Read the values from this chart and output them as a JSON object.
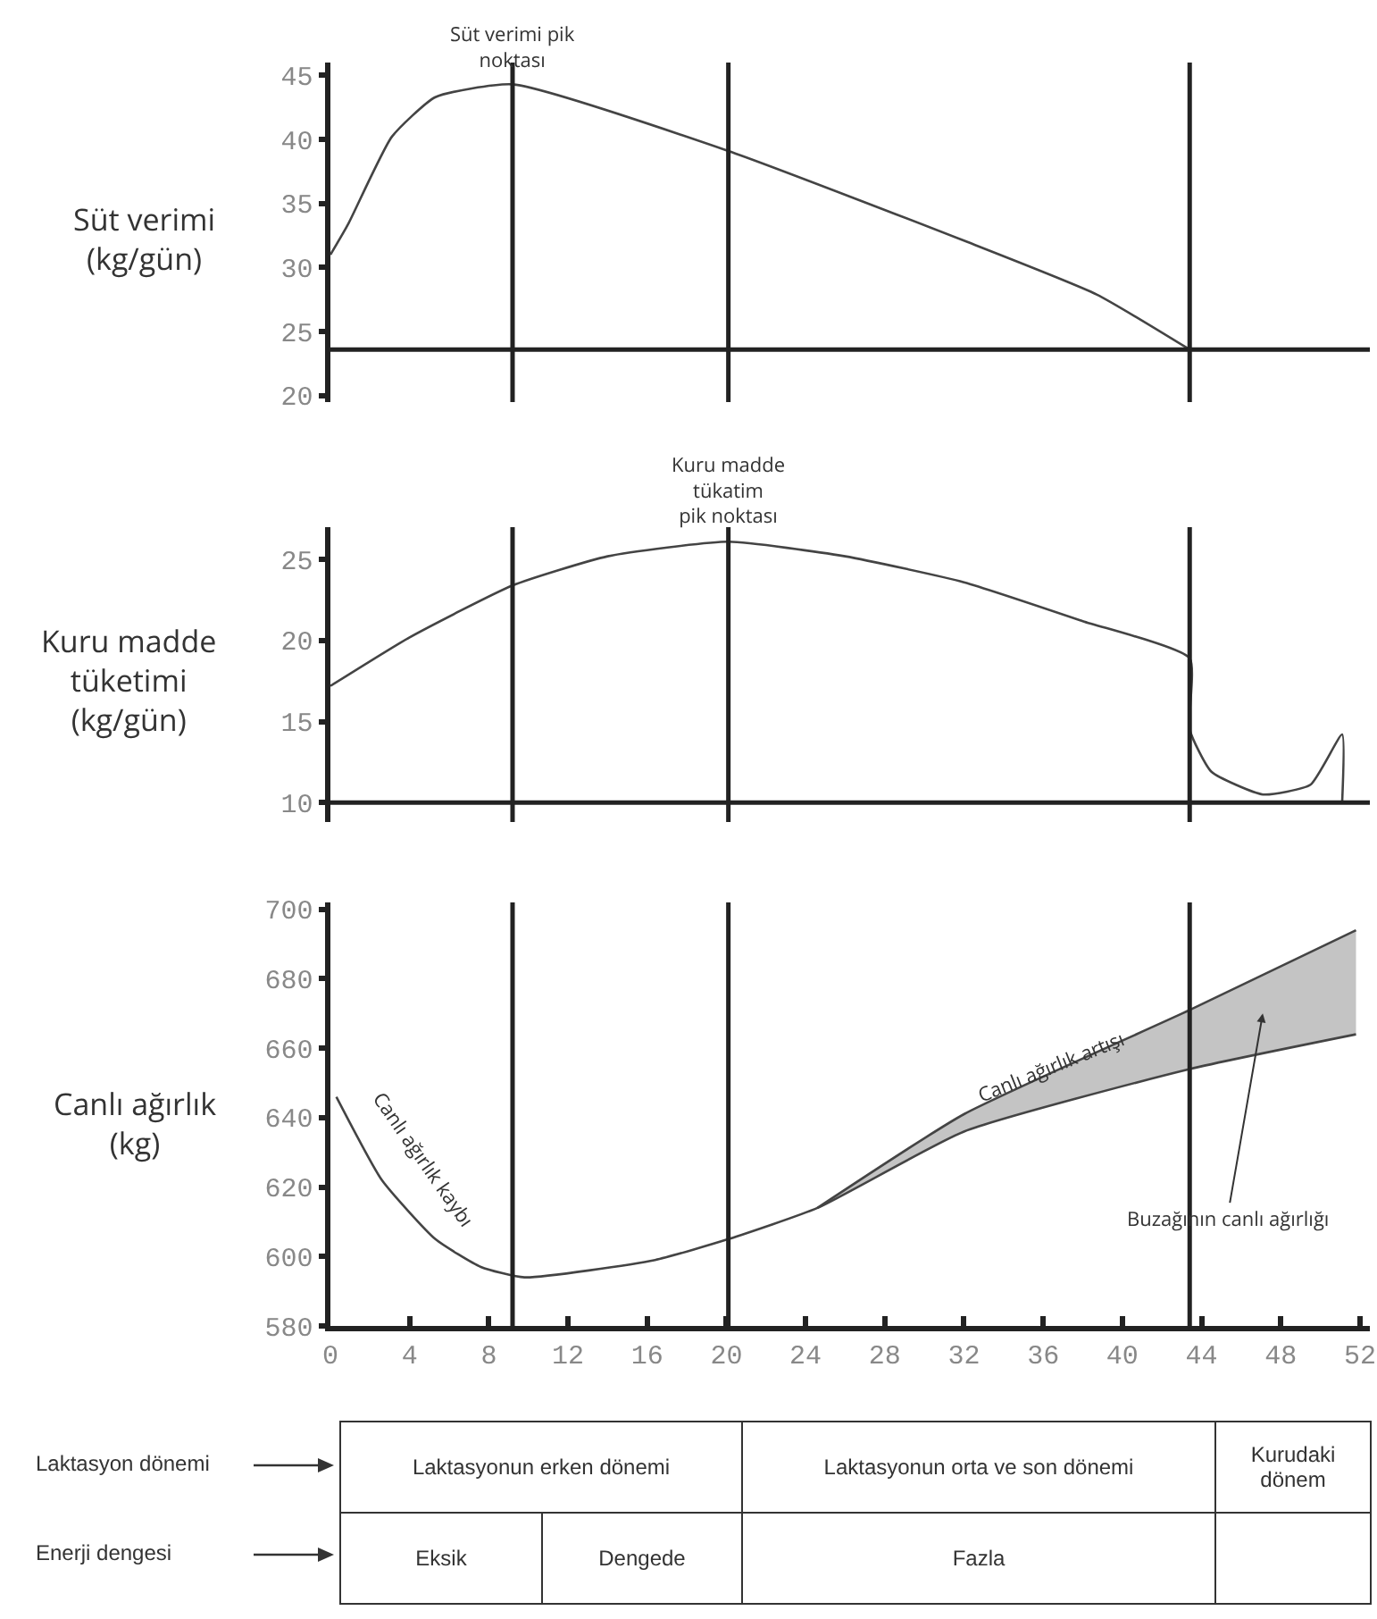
{
  "chart_data": [
    {
      "type": "line",
      "ylabel": "Süt verimi\n(kg/gün)",
      "xlim": [
        0,
        52.5
      ],
      "ylim": [
        19.5,
        46
      ],
      "yticks": [
        20,
        25,
        30,
        35,
        40,
        45
      ],
      "tick_labels": "y",
      "grid": false,
      "series": [
        {
          "color": "#444444",
          "x": [
            0,
            0.9,
            3.1,
            5.3,
            9.2,
            20.1,
            32,
            38.7,
            43.4
          ],
          "values": [
            31.0,
            33.4,
            40.2,
            43.3,
            44.3,
            39.1,
            32.1,
            27.9,
            23.6
          ]
        }
      ],
      "ref_lines": [
        {
          "axis": "x",
          "value": 9.2,
          "color": "#222222"
        },
        {
          "axis": "x",
          "value": 20.1,
          "color": "#222222"
        },
        {
          "axis": "x",
          "value": 43.4,
          "color": "#222222"
        },
        {
          "axis": "y",
          "value": 23.6,
          "color": "#222222"
        }
      ],
      "annotations": [
        {
          "text": "Süt verimi pik\nnoktası",
          "x": 9.2,
          "y": 44.3
        }
      ]
    },
    {
      "type": "line",
      "ylabel": "Kuru madde\ntüketimi\n(kg/gün)",
      "xlim": [
        0,
        52.5
      ],
      "ylim": [
        8.8,
        27
      ],
      "yticks": [
        10,
        15,
        20,
        25
      ],
      "tick_labels": "y",
      "grid": false,
      "series": [
        {
          "color": "#444444",
          "x": [
            0,
            4,
            9.2,
            14,
            20.1,
            26,
            32,
            38,
            43.4,
            43.4,
            44.5,
            47.1,
            49.5,
            51.1,
            51.1
          ],
          "values": [
            17.2,
            20.2,
            23.4,
            25.2,
            26.1,
            25.2,
            23.6,
            21.2,
            18.9,
            14.5,
            11.9,
            10.5,
            11.1,
            14.2,
            10
          ]
        }
      ],
      "ref_lines": [
        {
          "axis": "x",
          "value": 9.2,
          "color": "#222222"
        },
        {
          "axis": "x",
          "value": 20.1,
          "color": "#222222"
        },
        {
          "axis": "x",
          "value": 43.4,
          "color": "#222222"
        },
        {
          "axis": "y",
          "value": 10,
          "color": "#222222"
        }
      ],
      "annotations": [
        {
          "text": "Kuru madde\ntükatim\npik noktası",
          "x": 20.1,
          "y": 26.1
        }
      ]
    },
    {
      "type": "line",
      "ylabel": "Canlı ağırlık\n(kg)",
      "xlim": [
        0,
        52.5
      ],
      "xticks": [
        0,
        4,
        8,
        12,
        16,
        20,
        24,
        28,
        32,
        36,
        40,
        44,
        48,
        52
      ],
      "ylim": [
        580,
        702
      ],
      "yticks": [
        580,
        600,
        620,
        640,
        660,
        680,
        700
      ],
      "grid": false,
      "series": [
        {
          "color": "#444444",
          "x": [
            0.3,
            2.6,
            5.3,
            7.6,
            9.8,
            16.4,
            20.1,
            24.6,
            32,
            43.4,
            51.8
          ],
          "values": [
            646,
            622,
            605,
            597,
            594,
            599,
            605,
            614,
            636,
            654,
            664
          ],
          "lower": [
            null,
            null,
            null,
            null,
            null,
            null,
            null,
            614,
            636,
            654,
            664
          ],
          "upper": [
            null,
            null,
            null,
            null,
            null,
            null,
            null,
            614,
            641,
            671,
            694
          ]
        },
        {
          "color": "#444444",
          "x": [
            24.6,
            32,
            43.4,
            51.8
          ],
          "values": [
            614,
            641,
            671,
            694
          ]
        }
      ],
      "ref_lines": [
        {
          "axis": "x",
          "value": 9.2,
          "color": "#222222"
        },
        {
          "axis": "x",
          "value": 20.1,
          "color": "#222222"
        },
        {
          "axis": "x",
          "value": 43.4,
          "color": "#222222"
        }
      ],
      "annotations": [
        "Canlı ağırlık kaybı",
        {
          "text": "Canlı ağırlık artışı",
          "x": 36.4,
          "y": 654.5
        },
        "Buzağının canlı ağırlığı"
      ]
    },
    {
      "type": "other",
      "annotations": [
        "Laktasyon dönemi",
        "Enerji dengesi",
        "Laktasyonun erken dönemi",
        "Laktasyonun orta ve son dönemi",
        "Kurudaki\ndönem",
        "Eksik",
        "Dengede",
        "Fazla"
      ]
    }
  ]
}
